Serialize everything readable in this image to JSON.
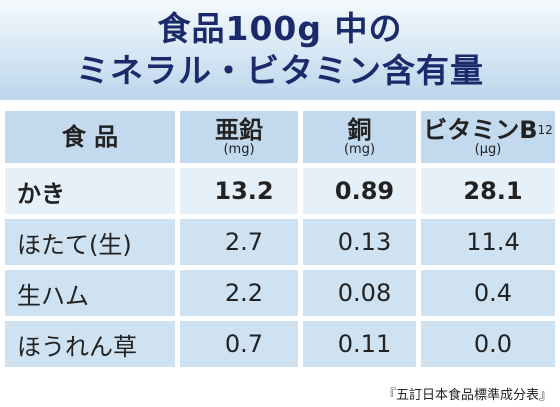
{
  "header": {
    "title_line1": "食品100g 中の",
    "title_line2": "ミネラル・ビタミン含有量"
  },
  "table": {
    "columns": [
      {
        "name": "食 品"
      },
      {
        "name": "亜鉛",
        "unit": "(mg)"
      },
      {
        "name": "銅",
        "unit": "(mg)"
      },
      {
        "name": "ビタミンB",
        "sub": "12",
        "unit": "(μg)"
      }
    ],
    "rows": [
      [
        "かき",
        "13.2",
        "0.89",
        "28.1"
      ],
      [
        "ほたて(生)",
        "2.7",
        "0.13",
        "11.4"
      ],
      [
        "生ハム",
        "2.2",
        "0.08",
        "0.4"
      ],
      [
        "ほうれん草",
        "0.7",
        "0.11",
        "0.0"
      ]
    ]
  },
  "source": "『五訂日本食品標準成分表』"
}
